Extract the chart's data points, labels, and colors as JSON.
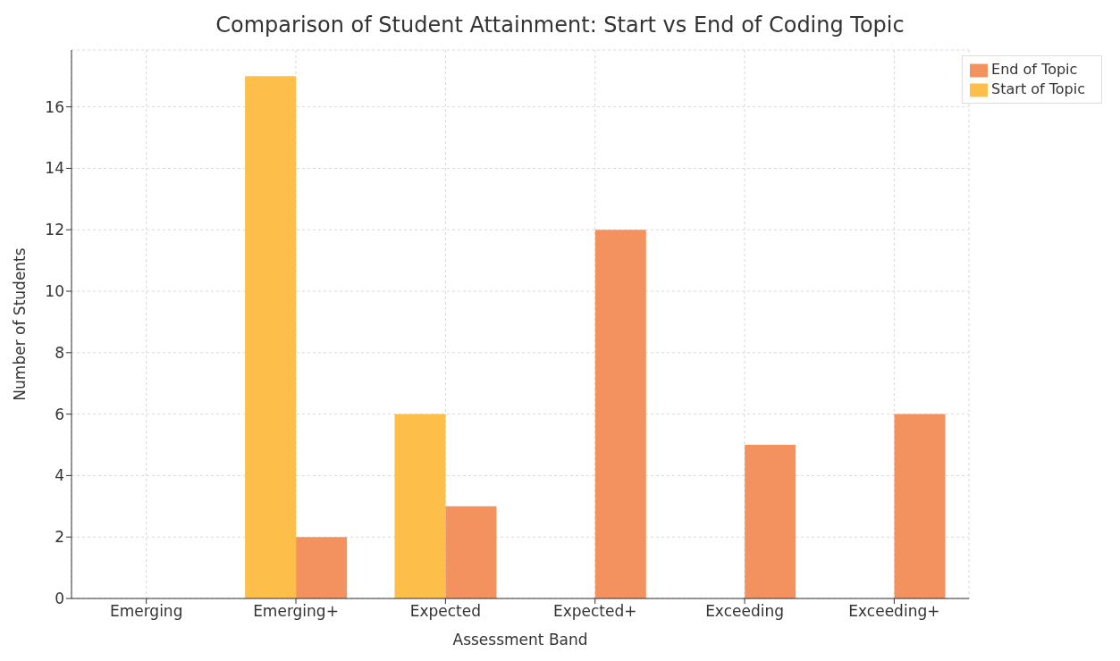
{
  "chart_data": {
    "type": "bar",
    "title": "Comparison of Student Attainment: Start vs End of Coding Topic",
    "xlabel": "Assessment Band",
    "ylabel": "Number of Students",
    "categories": [
      "Emerging",
      "Emerging+",
      "Expected",
      "Expected+",
      "Exceeding",
      "Exceeding+"
    ],
    "series": [
      {
        "name": "Start of Topic",
        "color": "#fdbf4a",
        "values": [
          0,
          17,
          6,
          0,
          0,
          0
        ]
      },
      {
        "name": "End of Topic",
        "color": "#f4925f",
        "values": [
          0,
          2,
          3,
          12,
          5,
          6
        ]
      }
    ],
    "ylim": [
      0,
      17.85
    ],
    "yticks": [
      0,
      2,
      4,
      6,
      8,
      10,
      12,
      14,
      16
    ],
    "grid": true,
    "legend": "top right"
  }
}
